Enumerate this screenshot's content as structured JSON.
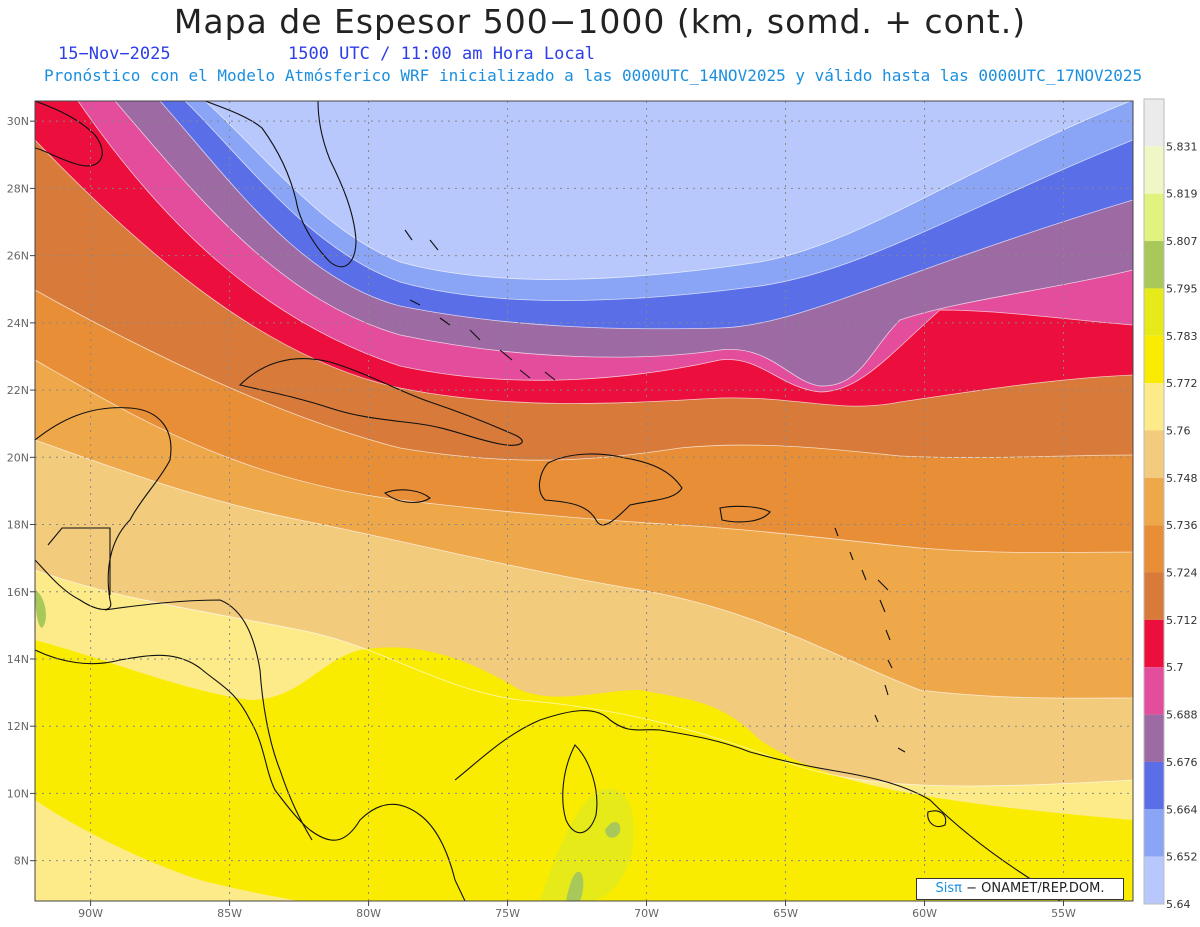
{
  "header": {
    "title": "Mapa de Espesor 500−1000 (km, somd. + cont.)",
    "date": "15−Nov−2025",
    "time": "1500 UTC / 11:00 am Hora Local",
    "subtitle": "Pronóstico con el Modelo Atmósferico WRF inicializado a las 0000UTC_14NOV2025 y válido hasta las  0000UTC_17NOV2025"
  },
  "map": {
    "lon_labels": [
      "90W",
      "85W",
      "80W",
      "75W",
      "70W",
      "65W",
      "60W",
      "55W"
    ],
    "lat_labels": [
      "30N",
      "28N",
      "26N",
      "24N",
      "22N",
      "20N",
      "18N",
      "16N",
      "14N",
      "12N",
      "10N",
      "8N"
    ],
    "lon_range": [
      -92,
      -52.5
    ],
    "lat_range": [
      6.8,
      30.6
    ]
  },
  "legend": {
    "labels": [
      "5.831",
      "5.819",
      "5.807",
      "5.795",
      "5.783",
      "5.772",
      "5.76",
      "5.748",
      "5.736",
      "5.724",
      "5.712",
      "5.7",
      "5.688",
      "5.676",
      "5.664",
      "5.652",
      "5.64"
    ],
    "colors_top_to_bottom": [
      "#ebebeb",
      "#f0f7c4",
      "#e1f27e",
      "#a8c95a",
      "#e6ea18",
      "#faec00",
      "#fceb88",
      "#f2cb7c",
      "#eea84a",
      "#e78e37",
      "#d77a3a",
      "#ec0e3c",
      "#e34d9c",
      "#9d6aa4",
      "#5a6ee8",
      "#8aa4f6",
      "#b8c8fc"
    ]
  },
  "credit": {
    "brand": "Sisπ",
    "text": " − ONAMET/REP.DOM."
  }
}
